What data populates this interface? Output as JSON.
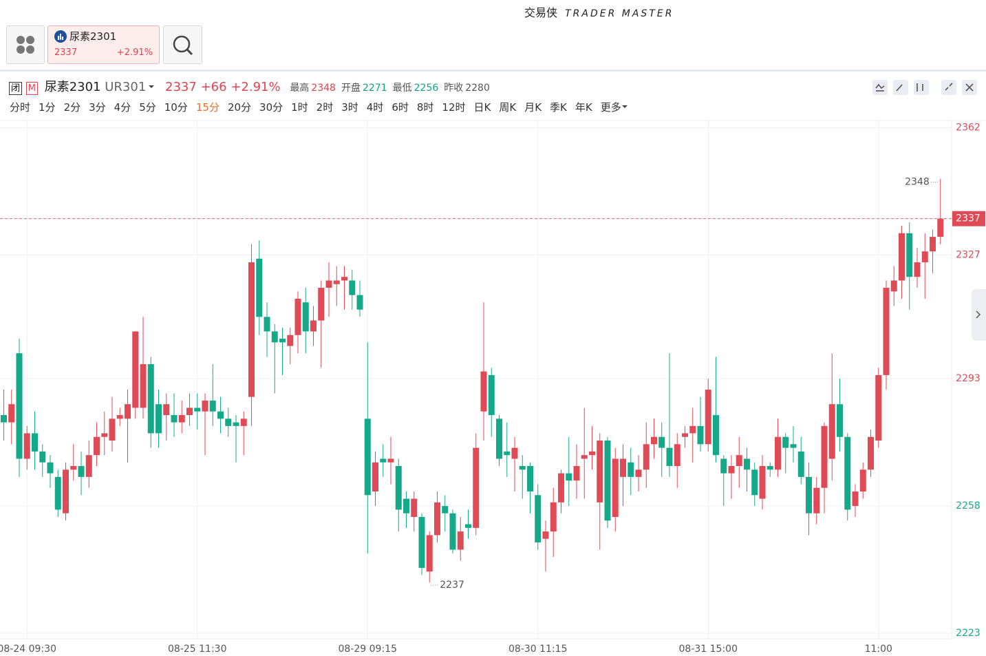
{
  "header": {
    "brand": "交易侠",
    "brand_en": "TRADER MASTER"
  },
  "tab": {
    "name": "尿素2301",
    "price": "2337",
    "change": "+2.91%"
  },
  "quote": {
    "status": "闭",
    "market": "M",
    "name": "尿素2301",
    "code": "UR301",
    "last": "2337",
    "change": "+66",
    "pct": "+2.91%",
    "stats": [
      {
        "label": "最高",
        "value": "2348",
        "color": "#e0434f"
      },
      {
        "label": "开盘",
        "value": "2271",
        "color": "#12a385"
      },
      {
        "label": "最低",
        "value": "2256",
        "color": "#12a385"
      },
      {
        "label": "昨收",
        "value": "2280",
        "color": "#555"
      }
    ]
  },
  "periods": [
    "分时",
    "1分",
    "2分",
    "3分",
    "4分",
    "5分",
    "10分",
    "15分",
    "20分",
    "30分",
    "1时",
    "2时",
    "3时",
    "4时",
    "6时",
    "8时",
    "12时",
    "日K",
    "周K",
    "月K",
    "季K",
    "年K",
    "更多"
  ],
  "active_period": "15分",
  "chart_data": {
    "type": "candlestick",
    "categories": [
      null,
      null,
      null,
      "08-24 09:30",
      null,
      null,
      null,
      null,
      null,
      null,
      null,
      null,
      null,
      null,
      null,
      null,
      null,
      null,
      null,
      null,
      null,
      null,
      null,
      null,
      null,
      "08-25 11:30",
      null,
      null,
      null,
      null,
      null,
      null,
      null,
      null,
      null,
      null,
      null,
      null,
      null,
      null,
      null,
      null,
      null,
      null,
      null,
      null,
      null,
      "08-29 09:15",
      null,
      null,
      null,
      null,
      null,
      null,
      null,
      null,
      null,
      null,
      null,
      null,
      null,
      null,
      null,
      null,
      null,
      null,
      null,
      null,
      null,
      "08-30 11:15",
      null,
      null,
      null,
      null,
      null,
      null,
      null,
      null,
      null,
      null,
      null,
      null,
      null,
      null,
      null,
      null,
      null,
      null,
      null,
      null,
      null,
      "08-31 15:00",
      null,
      null,
      null,
      null,
      null,
      null,
      null,
      null,
      null,
      null,
      null,
      null,
      null,
      null,
      null,
      null,
      null,
      null,
      null,
      null,
      null,
      "11:00",
      null,
      null,
      null,
      null,
      null,
      null,
      null,
      null
    ],
    "open": [
      2283,
      2281,
      2300,
      2271,
      2278,
      2273,
      2270,
      2266,
      2256,
      2268,
      2269,
      2266,
      2272,
      2277,
      2276,
      2282,
      2282,
      2285,
      2285,
      2297,
      2286,
      2283,
      2283,
      2281,
      2283,
      2285,
      2284,
      2287,
      2284,
      2282,
      2281,
      2280,
      2288,
      2326,
      2310,
      2306,
      2304,
      2302,
      2305,
      2314,
      2306,
      2309,
      2318,
      2319,
      2320,
      2320,
      2316,
      2282,
      2262,
      2271,
      2270,
      2269,
      2260,
      2255,
      2255,
      2240,
      2250,
      2258,
      2256,
      2246,
      2253,
      2252,
      2284,
      2294,
      2282,
      2273,
      2271,
      2269,
      2269,
      2261,
      2249,
      2251,
      2259,
      2267,
      2265,
      2271,
      2272,
      2259,
      2276,
      2255,
      2266,
      2270,
      2266,
      2268,
      2275,
      2277,
      2274,
      2269,
      2277,
      2278,
      2280,
      2275,
      2283,
      2271,
      2267,
      2269,
      2271,
      2268,
      2260,
      2269,
      2268,
      2277,
      2275,
      2273,
      2266,
      2256,
      2263,
      2271,
      2286,
      2277,
      2258,
      2262,
      2268,
      2276,
      2294,
      2317,
      2320,
      2333,
      2321,
      2325,
      2328,
      2332
    ],
    "high": [
      2290,
      2290,
      2304,
      2280,
      2284,
      2275,
      2272,
      2268,
      2270,
      2275,
      2273,
      2276,
      2281,
      2284,
      2288,
      2285,
      2290,
      2306,
      2310,
      2299,
      2290,
      2289,
      2289,
      2287,
      2289,
      2289,
      2289,
      2297,
      2288,
      2285,
      2283,
      2284,
      2330,
      2331,
      2314,
      2308,
      2307,
      2307,
      2317,
      2318,
      2313,
      2320,
      2325,
      2324,
      2324,
      2323,
      2320,
      2303,
      2273,
      2275,
      2277,
      2271,
      2262,
      2262,
      2256,
      2251,
      2262,
      2261,
      2257,
      2255,
      2257,
      2278,
      2314,
      2296,
      2283,
      2281,
      2277,
      2272,
      2270,
      2264,
      2254,
      2263,
      2268,
      2277,
      2275,
      2285,
      2280,
      2278,
      2277,
      2274,
      2275,
      2274,
      2272,
      2281,
      2282,
      2281,
      2300,
      2278,
      2280,
      2285,
      2288,
      2293,
      2299,
      2272,
      2272,
      2277,
      2274,
      2270,
      2272,
      2270,
      2282,
      2278,
      2280,
      2277,
      2270,
      2266,
      2281,
      2300,
      2293,
      2278,
      2264,
      2270,
      2279,
      2296,
      2320,
      2324,
      2335,
      2336,
      2329,
      2333,
      2334,
      2348
    ],
    "low": [
      2276,
      2275,
      2266,
      2268,
      2268,
      2266,
      2263,
      2255,
      2254,
      2265,
      2261,
      2263,
      2269,
      2272,
      2273,
      2280,
      2270,
      2282,
      2282,
      2274,
      2274,
      2276,
      2277,
      2278,
      2280,
      2279,
      2272,
      2280,
      2278,
      2277,
      2270,
      2272,
      2280,
      2305,
      2299,
      2289,
      2294,
      2297,
      2300,
      2300,
      2302,
      2296,
      2310,
      2313,
      2312,
      2312,
      2310,
      2245,
      2258,
      2266,
      2264,
      2251,
      2252,
      2251,
      2239,
      2237,
      2248,
      2251,
      2245,
      2243,
      2249,
      2250,
      2276,
      2277,
      2269,
      2266,
      2262,
      2260,
      2256,
      2246,
      2240,
      2244,
      2256,
      2258,
      2260,
      2260,
      2268,
      2246,
      2252,
      2251,
      2258,
      2261,
      2262,
      2263,
      2271,
      2266,
      2266,
      2263,
      2274,
      2270,
      2273,
      2273,
      2270,
      2258,
      2260,
      2263,
      2262,
      2258,
      2257,
      2266,
      2266,
      2267,
      2270,
      2264,
      2250,
      2253,
      2256,
      2265,
      2273,
      2254,
      2255,
      2260,
      2266,
      2274,
      2290,
      2313,
      2315,
      2312,
      2318,
      2315,
      2322,
      2330
    ],
    "close": [
      2281,
      2286,
      2271,
      2278,
      2273,
      2270,
      2267,
      2257,
      2268,
      2269,
      2266,
      2272,
      2277,
      2278,
      2282,
      2283,
      2286,
      2306,
      2297,
      2278,
      2278,
      2286,
      2281,
      2283,
      2285,
      2284,
      2287,
      2284,
      2282,
      2280,
      2280,
      2282,
      2325,
      2310,
      2306,
      2303,
      2303,
      2305,
      2315,
      2306,
      2309,
      2318,
      2320,
      2320,
      2321,
      2316,
      2312,
      2261,
      2270,
      2270,
      2271,
      2257,
      2256,
      2260,
      2241,
      2250,
      2259,
      2256,
      2246,
      2251,
      2252,
      2274,
      2295,
      2283,
      2271,
      2272,
      2274,
      2268,
      2262,
      2248,
      2251,
      2259,
      2267,
      2265,
      2269,
      2272,
      2273,
      2276,
      2254,
      2271,
      2271,
      2266,
      2268,
      2275,
      2277,
      2274,
      2269,
      2275,
      2278,
      2280,
      2275,
      2290,
      2272,
      2267,
      2269,
      2272,
      2268,
      2261,
      2269,
      2268,
      2277,
      2274,
      2274,
      2266,
      2256,
      2263,
      2280,
      2286,
      2277,
      2257,
      2262,
      2268,
      2277,
      2294,
      2318,
      2320,
      2333,
      2321,
      2325,
      2328,
      2332,
      2337
    ],
    "up_color": "#df4a57",
    "down_color": "#15a98a",
    "prev_close": 2280,
    "price_line": 2337,
    "ylim": [
      2221.5,
      2364
    ],
    "yticks": [
      2223,
      2258,
      2293,
      2327,
      2362
    ],
    "grid": true
  }
}
